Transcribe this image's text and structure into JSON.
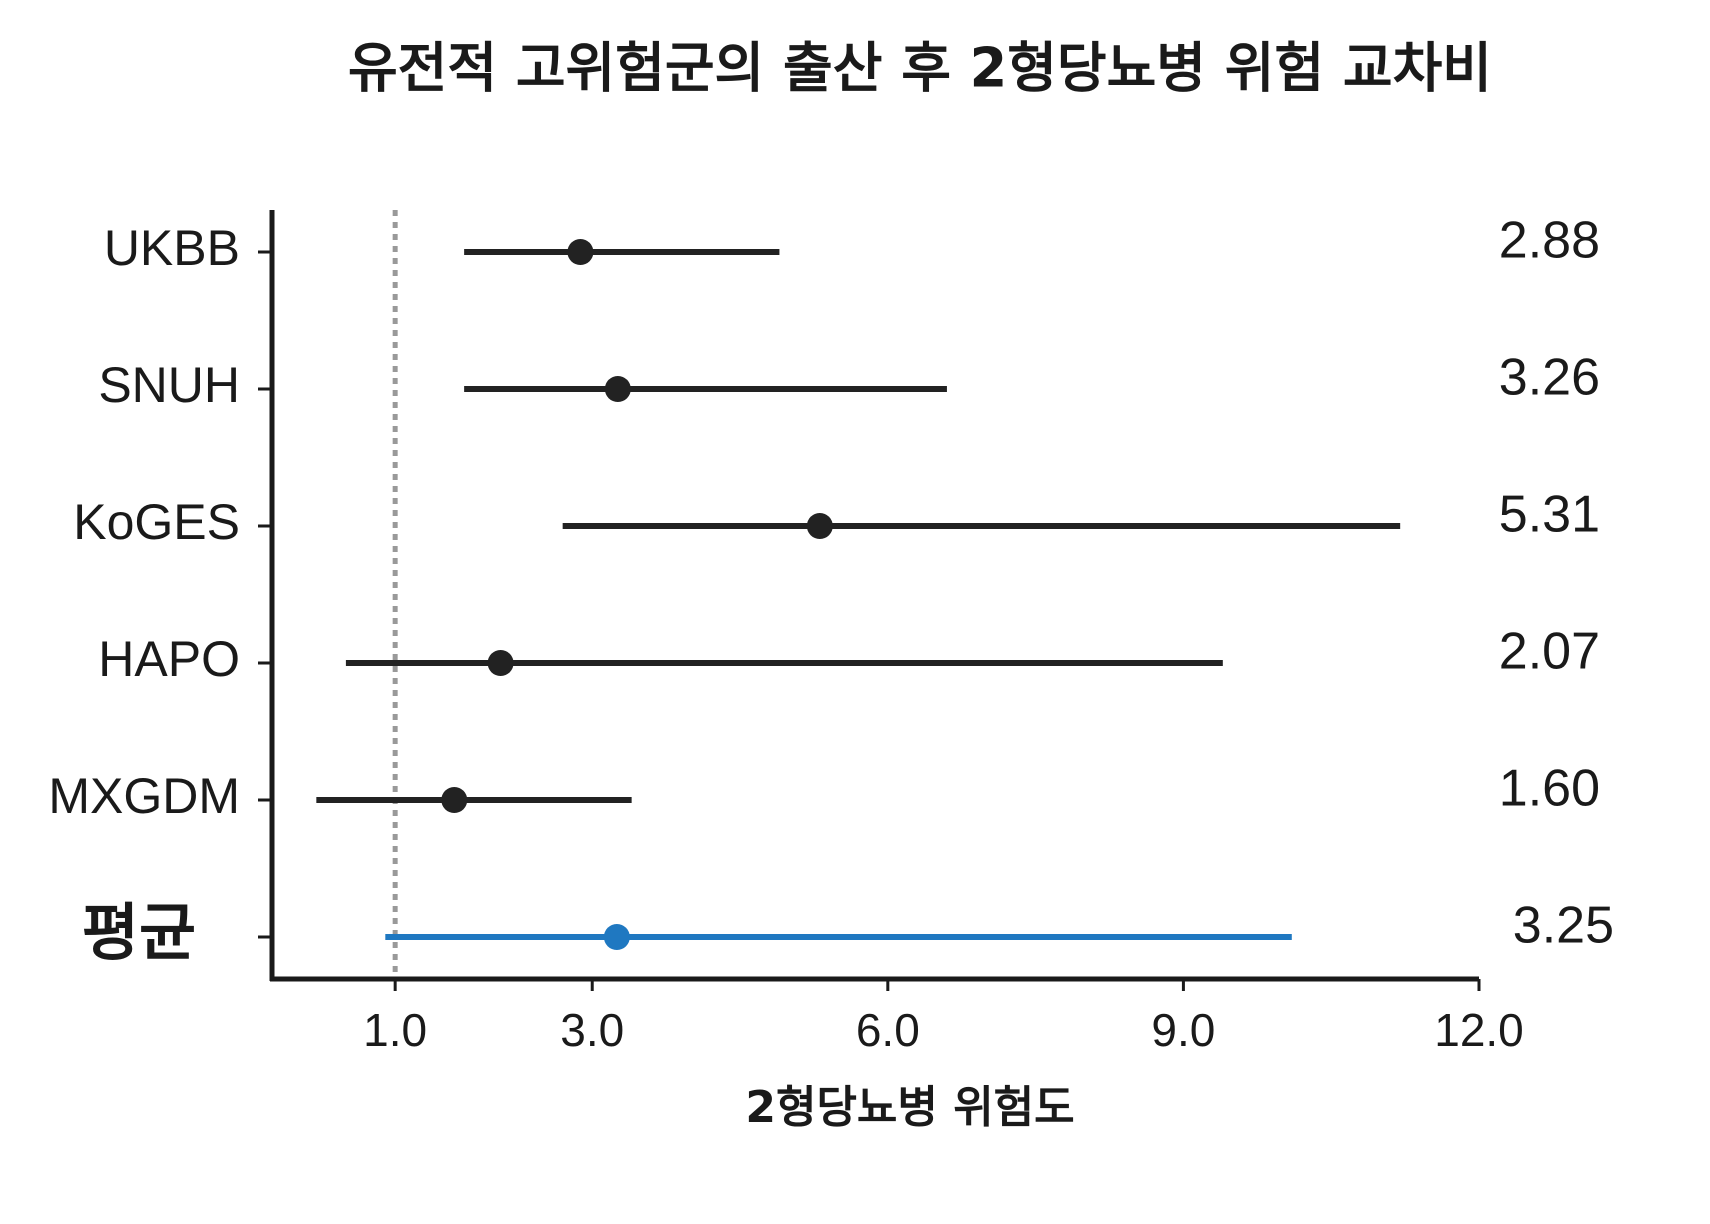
{
  "chart_data": {
    "type": "forest",
    "title": "유전적 고위험군의 출산 후 2형당뇨병 위험 교차비",
    "x_label": "2형당뇨병 위험도",
    "categories": [
      "UKBB",
      "SNUH",
      "KoGES",
      "HAPO",
      "MXGDM",
      "평균"
    ],
    "values": [
      2.88,
      3.26,
      5.31,
      2.07,
      1.6,
      3.25
    ],
    "value_labels": [
      "2.88",
      "3.26",
      "5.31",
      "2.07",
      "1.60",
      "3.25"
    ],
    "ci_low": [
      1.7,
      1.7,
      2.7,
      0.5,
      0.2,
      0.9
    ],
    "ci_high": [
      4.9,
      6.6,
      11.2,
      9.4,
      3.4,
      10.1
    ],
    "colors": [
      "#222222",
      "#222222",
      "#222222",
      "#222222",
      "#222222",
      "#1f78c1"
    ],
    "label_colors": [
      "#1a1a1a",
      "#1a1a1a",
      "#1a1a1a",
      "#1a1a1a",
      "#1a1a1a",
      "#7b5fc0"
    ],
    "value_label_colors": [
      "#1a1a1a",
      "#1a1a1a",
      "#1a1a1a",
      "#1a1a1a",
      "#1a1a1a",
      "#6a3d9a"
    ],
    "reference_line": 1,
    "xlim": [
      -0.25,
      12
    ],
    "xticks": [
      {
        "value": 1,
        "label": "1.0"
      },
      {
        "value": 3,
        "label": "3.0"
      },
      {
        "value": 6,
        "label": "6.0"
      },
      {
        "value": 9,
        "label": "9.0"
      },
      {
        "value": 12,
        "label": "12.0"
      }
    ]
  }
}
